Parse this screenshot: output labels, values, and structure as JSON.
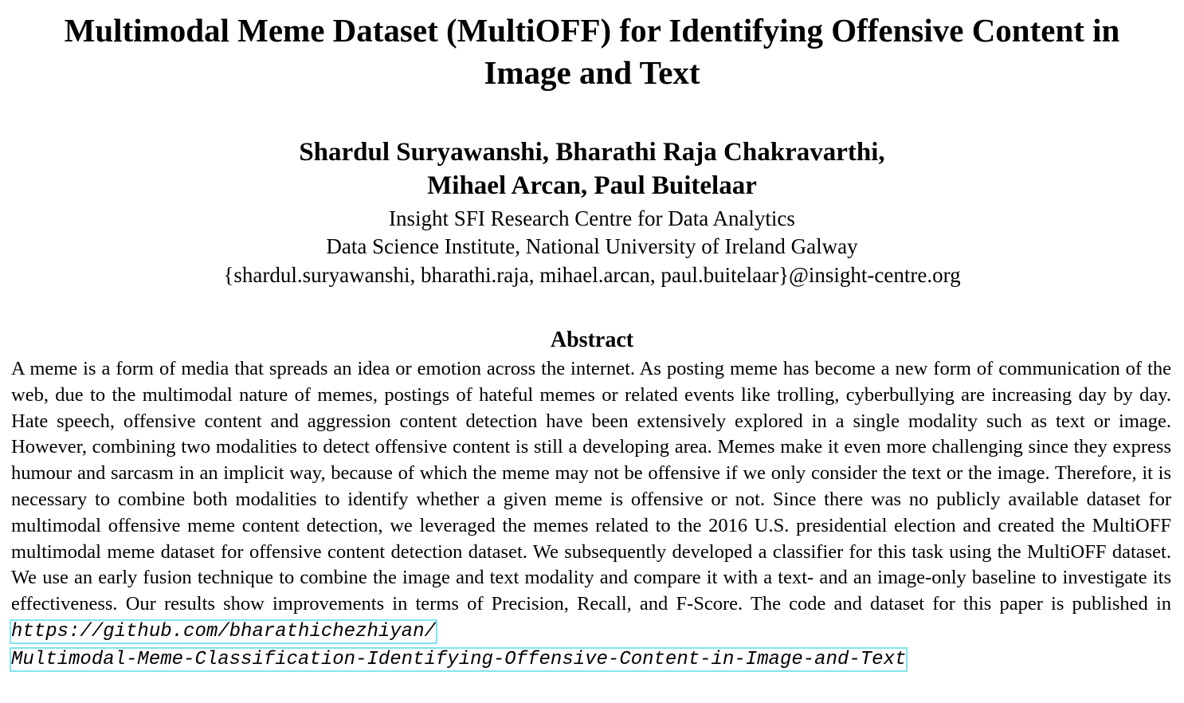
{
  "paper": {
    "title_line1": "Multimodal Meme Dataset (MultiOFF) for Identifying Offensive Content in",
    "title_line2": "Image and Text",
    "authors_line1": "Shardul Suryawanshi, Bharathi Raja Chakravarthi,",
    "authors_line2": "Mihael Arcan, Paul Buitelaar",
    "affiliation_line1": "Insight SFI Research Centre for Data Analytics",
    "affiliation_line2": "Data Science Institute, National University of Ireland Galway",
    "emails": "{shardul.suryawanshi, bharathi.raja, mihael.arcan, paul.buitelaar}@insight-centre.org"
  },
  "abstract": {
    "heading": "Abstract",
    "text": "A meme is a form of media that spreads an idea or emotion across the internet.  As posting meme has become a new form of communication of the web, due to the multimodal nature of memes, postings of hateful memes or related events like trolling, cyberbullying are increasing day by day.  Hate speech, offensive content and aggression content detection have been extensively explored in a single modality such as text or image.  However, combining two modalities to detect offensive content is still a developing area.  Memes make it even more challenging since they express humour and sarcasm in an implicit way, because of which the meme may not be offensive if we only consider the text or the image.  Therefore, it is necessary to combine both modalities to identify whether a given meme is offensive or not.  Since there was no publicly available dataset for multimodal offensive meme content detection, we leveraged the memes related to the 2016 U.S. presidential election and created the Mul­tiOFF multimodal meme dataset for offensive content detection dataset.  We subsequently developed a classifier for this task using the MultiOFF dataset.  We use an early fusion technique to combine the image and text modality and compare it with a text- and an image-only baseline to investigate its effectiveness.  Our results show improvements in terms of Precision, Re­call, and F-Score.  The code and dataset for this paper is published in",
    "link_part1": "https://github.com/bharathichezhiyan/",
    "link_part2": "Multimodal-Meme-Classification-Identifying-Offensive-Content-in-Image-and-Text"
  }
}
